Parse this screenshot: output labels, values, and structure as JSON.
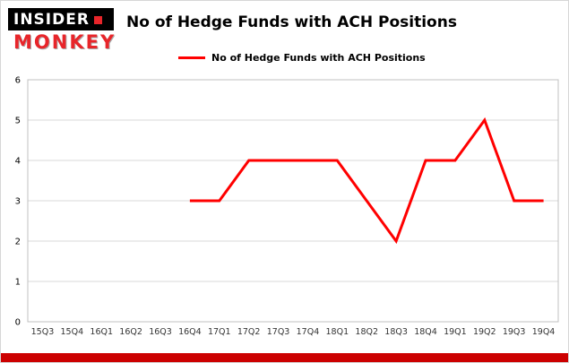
{
  "logo": {
    "line1": "INSIDER",
    "line2": "MONKEY"
  },
  "header": {
    "title": "No of Hedge Funds with ACH Positions"
  },
  "legend": {
    "label": "No of Hedge Funds with ACH Positions",
    "color": "#ff0000"
  },
  "colors": {
    "line": "#ff0000",
    "grid": "#d9d9d9",
    "plot_border": "#c0c0c0",
    "tick_text": "#333333",
    "bottom_bar": "#cc0000",
    "logo_red": "#e8252a"
  },
  "chart_data": {
    "type": "line",
    "title": "No of Hedge Funds with ACH Positions",
    "categories": [
      "15Q3",
      "15Q4",
      "16Q1",
      "16Q2",
      "16Q3",
      "16Q4",
      "17Q1",
      "17Q2",
      "17Q3",
      "17Q4",
      "18Q1",
      "18Q2",
      "18Q3",
      "18Q4",
      "19Q1",
      "19Q2",
      "19Q3",
      "19Q4"
    ],
    "series": [
      {
        "name": "No of Hedge Funds with ACH Positions",
        "color": "#ff0000",
        "values": [
          null,
          null,
          null,
          null,
          null,
          3,
          3,
          4,
          4,
          4,
          4,
          3,
          2,
          4,
          4,
          5,
          3,
          3
        ]
      }
    ],
    "xlabel": "",
    "ylabel": "",
    "ylim": [
      0,
      6
    ],
    "yticks": [
      0,
      1,
      2,
      3,
      4,
      5,
      6
    ],
    "grid": true,
    "legend_position": "top-left"
  }
}
